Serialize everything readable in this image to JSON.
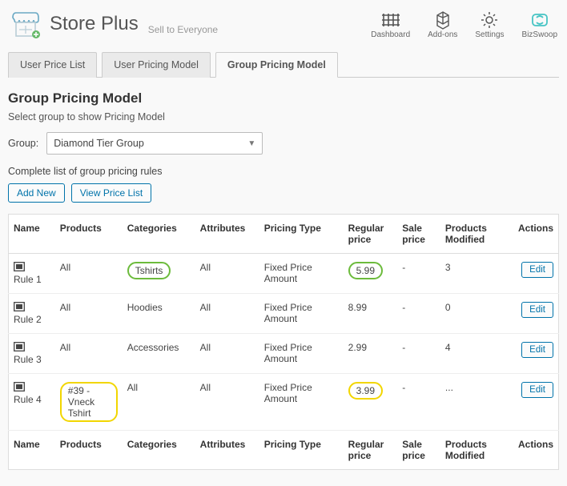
{
  "brand": {
    "title": "Store Plus",
    "tagline": "Sell to Everyone"
  },
  "topnav": [
    {
      "key": "dashboard",
      "label": "Dashboard"
    },
    {
      "key": "addons",
      "label": "Add-ons"
    },
    {
      "key": "settings",
      "label": "Settings"
    },
    {
      "key": "bizswoop",
      "label": "BizSwoop"
    }
  ],
  "tabs": [
    {
      "key": "user-price-list",
      "label": "User Price List",
      "active": false
    },
    {
      "key": "user-pricing-model",
      "label": "User Pricing Model",
      "active": false
    },
    {
      "key": "group-pricing-model",
      "label": "Group Pricing Model",
      "active": true
    }
  ],
  "section": {
    "title": "Group Pricing Model",
    "subtitle": "Select group to show Pricing Model",
    "group_label": "Group:",
    "selected_group": "Diamond Tier Group",
    "list_caption": "Complete list of group pricing rules",
    "add_new_label": "Add New",
    "view_list_label": "View Price List"
  },
  "table": {
    "columns": [
      "Name",
      "Products",
      "Categories",
      "Attributes",
      "Pricing Type",
      "Regular price",
      "Sale price",
      "Products Modified",
      "Actions"
    ],
    "edit_label": "Edit",
    "rows": [
      {
        "name": "Rule 1",
        "products": "All",
        "categories": "Tshirts",
        "categories_highlight": "green",
        "attributes": "All",
        "pricing_type": "Fixed Price Amount",
        "regular_price": "5.99",
        "regular_highlight": "green",
        "sale_price": "-",
        "modified": "3"
      },
      {
        "name": "Rule 2",
        "products": "All",
        "categories": "Hoodies",
        "attributes": "All",
        "pricing_type": "Fixed Price Amount",
        "regular_price": "8.99",
        "sale_price": "-",
        "modified": "0"
      },
      {
        "name": "Rule 3",
        "products": "All",
        "categories": "Accessories",
        "attributes": "All",
        "pricing_type": "Fixed Price Amount",
        "regular_price": "2.99",
        "sale_price": "-",
        "modified": "4"
      },
      {
        "name": "Rule 4",
        "products": "#39 - Vneck Tshirt",
        "products_highlight": "yellow",
        "categories": "All",
        "attributes": "All",
        "pricing_type": "Fixed Price Amount",
        "regular_price": "3.99",
        "regular_highlight": "yellow",
        "sale_price": "-",
        "modified": "..."
      }
    ]
  },
  "colors": {
    "link": "#0073aa",
    "highlight_green": "#6cbb3c",
    "highlight_yellow": "#f2d600",
    "biz_accent": "#46c4c4"
  }
}
